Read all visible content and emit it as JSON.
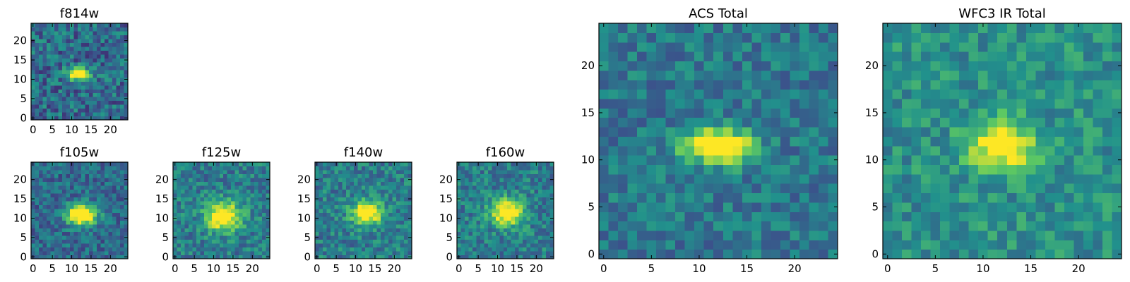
{
  "figure": {
    "description_none": null
  },
  "colormap": {
    "name": "viridis",
    "stops": [
      "#440154",
      "#3b528b",
      "#21918c",
      "#5ec962",
      "#fde725"
    ]
  },
  "chart_data": [
    {
      "type": "heatmap",
      "id": "f814w",
      "title": "f814w",
      "xlim": [
        -0.5,
        24.5
      ],
      "ylim": [
        -0.5,
        24.5
      ],
      "xticks": [
        0,
        5,
        10,
        15,
        20
      ],
      "yticks": [
        0,
        5,
        10,
        15,
        20
      ],
      "grid_size": 25,
      "source": {
        "cx": 12,
        "cy": 11.5,
        "sx": 2.0,
        "sy": 1.0,
        "amp": 1.0
      },
      "background": 0.35,
      "noise": 0.2,
      "seed": 11
    },
    {
      "type": "heatmap",
      "id": "f105w",
      "title": "f105w",
      "xlim": [
        -0.5,
        24.5
      ],
      "ylim": [
        -0.5,
        24.5
      ],
      "xticks": [
        0,
        5,
        10,
        15,
        20
      ],
      "yticks": [
        0,
        5,
        10,
        15,
        20
      ],
      "grid_size": 25,
      "source": {
        "cx": 12.5,
        "cy": 11,
        "sx": 2.6,
        "sy": 1.8,
        "amp": 1.0
      },
      "background": 0.35,
      "noise": 0.16,
      "seed": 23
    },
    {
      "type": "heatmap",
      "id": "f125w",
      "title": "f125w",
      "xlim": [
        -0.5,
        24.5
      ],
      "ylim": [
        -0.5,
        24.5
      ],
      "xticks": [
        0,
        5,
        10,
        15,
        20
      ],
      "yticks": [
        0,
        5,
        10,
        15,
        20
      ],
      "grid_size": 25,
      "source": {
        "cx": 12.5,
        "cy": 10.5,
        "sx": 3.2,
        "sy": 2.6,
        "amp": 0.75
      },
      "background": 0.42,
      "noise": 0.17,
      "seed": 37
    },
    {
      "type": "heatmap",
      "id": "f140w",
      "title": "f140w",
      "xlim": [
        -0.5,
        24.5
      ],
      "ylim": [
        -0.5,
        24.5
      ],
      "xticks": [
        0,
        5,
        10,
        15,
        20
      ],
      "yticks": [
        0,
        5,
        10,
        15,
        20
      ],
      "grid_size": 25,
      "source": {
        "cx": 13,
        "cy": 11.5,
        "sx": 2.8,
        "sy": 2.2,
        "amp": 0.75
      },
      "background": 0.42,
      "noise": 0.17,
      "seed": 41
    },
    {
      "type": "heatmap",
      "id": "f160w",
      "title": "f160w",
      "xlim": [
        -0.5,
        24.5
      ],
      "ylim": [
        -0.5,
        24.5
      ],
      "xticks": [
        0,
        5,
        10,
        15,
        20
      ],
      "yticks": [
        0,
        5,
        10,
        15,
        20
      ],
      "grid_size": 25,
      "source": {
        "cx": 12.5,
        "cy": 11.5,
        "sx": 3.0,
        "sy": 2.4,
        "amp": 0.75
      },
      "background": 0.42,
      "noise": 0.17,
      "seed": 53
    },
    {
      "type": "heatmap",
      "id": "acs_total",
      "title": "ACS Total",
      "xlim": [
        -0.5,
        24.5
      ],
      "ylim": [
        -0.5,
        24.5
      ],
      "xticks": [
        0,
        5,
        10,
        15,
        20
      ],
      "yticks": [
        0,
        5,
        10,
        15,
        20
      ],
      "grid_size": 25,
      "source": {
        "cx": 12,
        "cy": 11.5,
        "sx": 2.4,
        "sy": 1.2,
        "amp": 1.0
      },
      "background": 0.4,
      "noise": 0.15,
      "seed": 67
    },
    {
      "type": "heatmap",
      "id": "wfc3_ir_total",
      "title": "WFC3 IR Total",
      "xlim": [
        -0.5,
        24.5
      ],
      "ylim": [
        -0.5,
        24.5
      ],
      "xticks": [
        0,
        5,
        10,
        15,
        20
      ],
      "yticks": [
        0,
        5,
        10,
        15,
        20
      ],
      "grid_size": 25,
      "source": {
        "cx": 12,
        "cy": 11.5,
        "sx": 2.4,
        "sy": 1.8,
        "amp": 0.65
      },
      "background": 0.5,
      "noise": 0.15,
      "seed": 79
    }
  ]
}
